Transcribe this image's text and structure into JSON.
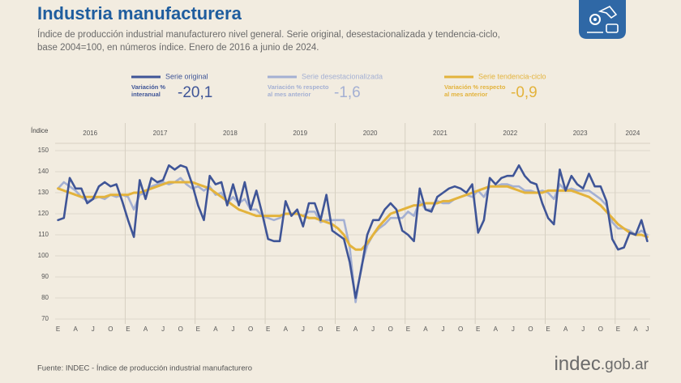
{
  "chart_data": {
    "type": "line",
    "title": "Industria manufacturera",
    "subtitle": [
      "Índice de producción industrial manufacturero nivel general. Serie original, desestacionalizada y tendencia-ciclo,",
      "base 2004=100, en números índice. Enero de 2016 a junio de 2024."
    ],
    "y_label": "Índice",
    "source": "Fuente: INDEC - Índice de producción industrial manufacturero",
    "logo": [
      "indec",
      ".gob.ar"
    ],
    "years": [
      "2016",
      "2017",
      "2018",
      "2019",
      "2020",
      "2021",
      "2022",
      "2023",
      "2024"
    ],
    "categories": [
      "E",
      null,
      null,
      "A",
      null,
      null,
      "J",
      null,
      null,
      "O",
      null,
      null,
      "E",
      null,
      null,
      "A",
      null,
      null,
      "J",
      null,
      null,
      "O",
      null,
      null,
      "E",
      null,
      null,
      "A",
      null,
      null,
      "J",
      null,
      null,
      "O",
      null,
      null,
      "E",
      null,
      null,
      "A",
      null,
      null,
      "J",
      null,
      null,
      "O",
      null,
      null,
      "E",
      null,
      null,
      "A",
      null,
      null,
      "J",
      null,
      null,
      "O",
      null,
      null,
      "E",
      null,
      null,
      "A",
      null,
      null,
      "J",
      null,
      null,
      "O",
      null,
      null,
      "E",
      null,
      null,
      "A",
      null,
      null,
      "J",
      null,
      null,
      "O",
      null,
      null,
      "E",
      null,
      null,
      "A",
      null,
      null,
      "J",
      null,
      null,
      "O",
      null,
      null,
      "E",
      null,
      null,
      "A",
      null,
      "J"
    ],
    "ylim": [
      70,
      150
    ],
    "yticks": [
      70,
      80,
      90,
      100,
      110,
      120,
      130,
      140,
      150
    ],
    "grid": true,
    "series": [
      {
        "name": "Serie original",
        "color": "#3f5597",
        "indicator_label": [
          "Variación %",
          "interanual"
        ],
        "indicator_value": "-20,1",
        "values": [
          117,
          118,
          137,
          132,
          132,
          125,
          127,
          133,
          135,
          133,
          134,
          126,
          117,
          109,
          136,
          127,
          137,
          135,
          136,
          143,
          141,
          143,
          142,
          134,
          124,
          117,
          138,
          134,
          135,
          124,
          134,
          124,
          135,
          122,
          131,
          120,
          108,
          107,
          107,
          126,
          119,
          122,
          114,
          125,
          125,
          117,
          129,
          112,
          110,
          108,
          97,
          80,
          94,
          110,
          117,
          117,
          122,
          125,
          122,
          112,
          110,
          107,
          132,
          122,
          121,
          128,
          130,
          132,
          133,
          132,
          130,
          134,
          111,
          117,
          137,
          134,
          137,
          138,
          138,
          143,
          138,
          135,
          134,
          125,
          118,
          115,
          141,
          131,
          138,
          134,
          132,
          139,
          133,
          133,
          126,
          108,
          103,
          104,
          111,
          110,
          117,
          107
        ]
      },
      {
        "name": "Serie desestacionalizada",
        "color": "#a4b0d3",
        "indicator_label": [
          "Variación % respecto",
          "al mes anterior"
        ],
        "indicator_value": "-1,6",
        "values": [
          132,
          135,
          133,
          131,
          128,
          126,
          127,
          128,
          127,
          129,
          128,
          129,
          128,
          122,
          129,
          130,
          133,
          134,
          135,
          134,
          135,
          137,
          134,
          132,
          133,
          131,
          133,
          129,
          130,
          125,
          128,
          125,
          127,
          122,
          122,
          119,
          118,
          117,
          118,
          120,
          120,
          120,
          119,
          121,
          121,
          116,
          117,
          117,
          117,
          117,
          104,
          78,
          95,
          105,
          110,
          113,
          115,
          118,
          118,
          118,
          121,
          119,
          126,
          122,
          122,
          126,
          125,
          125,
          127,
          128,
          129,
          128,
          131,
          128,
          133,
          133,
          134,
          134,
          133,
          133,
          131,
          131,
          130,
          131,
          130,
          127,
          134,
          131,
          132,
          131,
          131,
          131,
          129,
          127,
          124,
          116,
          113,
          113,
          112,
          110,
          112,
          110
        ]
      },
      {
        "name": "Serie tendencia-ciclo",
        "color": "#e3b33c",
        "indicator_label": [
          "Variación % respecto",
          "al mes anterior"
        ],
        "indicator_value": "-0,9",
        "values": [
          132,
          131,
          130,
          129,
          128,
          128,
          128,
          128,
          128,
          129,
          129,
          129,
          129,
          130,
          130,
          131,
          132,
          133,
          134,
          135,
          135,
          135,
          135,
          135,
          134,
          133,
          132,
          130,
          128,
          126,
          124,
          122,
          121,
          120,
          119,
          119,
          119,
          119,
          119,
          120,
          120,
          120,
          119,
          118,
          118,
          117,
          116,
          115,
          113,
          110,
          105,
          103,
          103,
          106,
          110,
          114,
          117,
          120,
          121,
          122,
          123,
          124,
          124,
          125,
          125,
          125,
          126,
          126,
          127,
          128,
          129,
          130,
          131,
          132,
          133,
          133,
          133,
          133,
          132,
          131,
          130,
          130,
          130,
          130,
          131,
          131,
          131,
          131,
          131,
          130,
          129,
          128,
          126,
          124,
          121,
          118,
          115,
          113,
          111,
          110,
          110,
          109
        ]
      }
    ]
  }
}
